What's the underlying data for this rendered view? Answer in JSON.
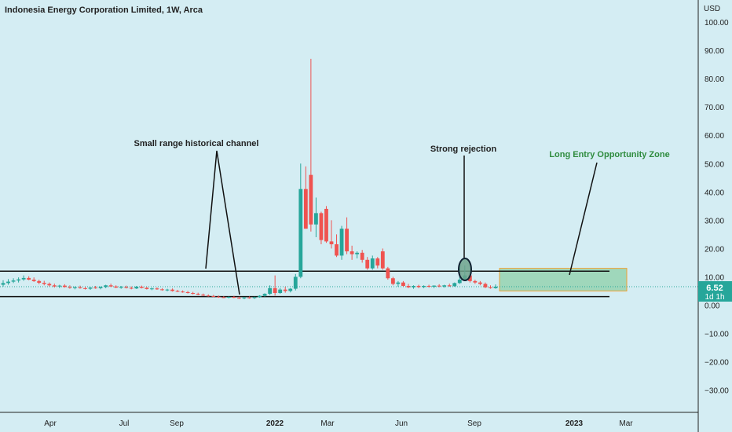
{
  "header": {
    "title": "Indonesia Energy Corporation Limited, 1W, Arca"
  },
  "axis": {
    "currency": "USD",
    "y_ticks": [
      "100.00",
      "90.00",
      "80.00",
      "70.00",
      "60.00",
      "50.00",
      "40.00",
      "30.00",
      "20.00",
      "10.00",
      "0.00",
      "−10.00",
      "−20.00",
      "−30.00"
    ],
    "y_tick_values": [
      100,
      90,
      80,
      70,
      60,
      50,
      40,
      30,
      20,
      10,
      0,
      -10,
      -20,
      -30
    ],
    "x_ticks": [
      "Apr",
      "Jul",
      "Sep",
      "2022",
      "Mar",
      "Jun",
      "Sep",
      "2023",
      "Mar"
    ]
  },
  "price_label": {
    "value": "6.52",
    "countdown": "1d 1h"
  },
  "annotations": {
    "channel": "Small range historical channel",
    "rejection": "Strong rejection",
    "zone": "Long Entry Opportunity Zone"
  },
  "colors": {
    "background": "#d4edf3",
    "up": "#26a69a",
    "down": "#ef5350",
    "zone_fill": "#8ecfa8",
    "zone_border": "#f0a030",
    "zone_text": "#2e8b3d",
    "price_label_bg": "#26a69a"
  },
  "chart_data": {
    "type": "candlestick",
    "title": "Indonesia Energy Corporation Limited, 1W, Arca",
    "ylabel": "USD",
    "ylim": [
      -37,
      105
    ],
    "channel_lines": [
      12,
      3
    ],
    "zone": {
      "low": 5,
      "high": 13
    },
    "last_price": 6.52,
    "candles": [
      {
        "o": 7.2,
        "h": 8.8,
        "l": 6.5,
        "c": 7.8
      },
      {
        "o": 7.8,
        "h": 9.2,
        "l": 7.2,
        "c": 8.3
      },
      {
        "o": 8.3,
        "h": 9.5,
        "l": 7.8,
        "c": 8.7
      },
      {
        "o": 8.7,
        "h": 9.8,
        "l": 8.0,
        "c": 9.1
      },
      {
        "o": 9.1,
        "h": 10.5,
        "l": 8.6,
        "c": 9.6
      },
      {
        "o": 9.6,
        "h": 10.2,
        "l": 8.8,
        "c": 9.0
      },
      {
        "o": 9.0,
        "h": 9.8,
        "l": 8.2,
        "c": 8.5
      },
      {
        "o": 8.5,
        "h": 9.0,
        "l": 7.4,
        "c": 7.9
      },
      {
        "o": 7.9,
        "h": 8.6,
        "l": 7.0,
        "c": 7.5
      },
      {
        "o": 7.5,
        "h": 8.0,
        "l": 6.6,
        "c": 7.0
      },
      {
        "o": 7.0,
        "h": 7.6,
        "l": 6.2,
        "c": 6.6
      },
      {
        "o": 6.6,
        "h": 7.2,
        "l": 6.0,
        "c": 6.9
      },
      {
        "o": 6.9,
        "h": 7.4,
        "l": 6.2,
        "c": 6.4
      },
      {
        "o": 6.4,
        "h": 7.0,
        "l": 5.8,
        "c": 6.1
      },
      {
        "o": 6.1,
        "h": 6.6,
        "l": 5.6,
        "c": 6.3
      },
      {
        "o": 6.3,
        "h": 6.9,
        "l": 5.8,
        "c": 6.0
      },
      {
        "o": 6.0,
        "h": 6.5,
        "l": 5.5,
        "c": 5.8
      },
      {
        "o": 5.8,
        "h": 6.4,
        "l": 5.4,
        "c": 6.2
      },
      {
        "o": 6.2,
        "h": 6.8,
        "l": 5.8,
        "c": 6.0
      },
      {
        "o": 6.0,
        "h": 6.6,
        "l": 5.6,
        "c": 6.4
      },
      {
        "o": 6.4,
        "h": 7.2,
        "l": 6.0,
        "c": 7.0
      },
      {
        "o": 7.0,
        "h": 7.6,
        "l": 6.4,
        "c": 6.6
      },
      {
        "o": 6.6,
        "h": 7.0,
        "l": 6.0,
        "c": 6.2
      },
      {
        "o": 6.2,
        "h": 6.8,
        "l": 5.8,
        "c": 6.4
      },
      {
        "o": 6.4,
        "h": 6.9,
        "l": 5.9,
        "c": 6.1
      },
      {
        "o": 6.1,
        "h": 6.6,
        "l": 5.6,
        "c": 5.9
      },
      {
        "o": 5.9,
        "h": 6.8,
        "l": 5.7,
        "c": 6.5
      },
      {
        "o": 6.5,
        "h": 6.9,
        "l": 5.9,
        "c": 6.1
      },
      {
        "o": 6.1,
        "h": 6.5,
        "l": 5.5,
        "c": 5.7
      },
      {
        "o": 5.7,
        "h": 6.2,
        "l": 5.3,
        "c": 5.9
      },
      {
        "o": 5.9,
        "h": 6.3,
        "l": 5.4,
        "c": 5.6
      },
      {
        "o": 5.6,
        "h": 6.0,
        "l": 5.1,
        "c": 5.3
      },
      {
        "o": 5.3,
        "h": 5.8,
        "l": 4.9,
        "c": 5.5
      },
      {
        "o": 5.5,
        "h": 5.9,
        "l": 4.8,
        "c": 5.0
      },
      {
        "o": 5.0,
        "h": 5.4,
        "l": 4.6,
        "c": 4.8
      },
      {
        "o": 4.8,
        "h": 5.2,
        "l": 4.4,
        "c": 4.6
      },
      {
        "o": 4.6,
        "h": 5.0,
        "l": 4.1,
        "c": 4.3
      },
      {
        "o": 4.3,
        "h": 4.7,
        "l": 3.8,
        "c": 4.0
      },
      {
        "o": 4.0,
        "h": 4.4,
        "l": 3.5,
        "c": 3.7
      },
      {
        "o": 3.7,
        "h": 4.1,
        "l": 3.2,
        "c": 3.4
      },
      {
        "o": 3.4,
        "h": 3.8,
        "l": 3.0,
        "c": 3.2
      },
      {
        "o": 3.2,
        "h": 3.6,
        "l": 2.8,
        "c": 3.0
      },
      {
        "o": 3.0,
        "h": 3.4,
        "l": 2.6,
        "c": 2.8
      },
      {
        "o": 2.8,
        "h": 3.2,
        "l": 2.5,
        "c": 2.7
      },
      {
        "o": 2.7,
        "h": 3.1,
        "l": 2.4,
        "c": 2.9
      },
      {
        "o": 2.9,
        "h": 3.3,
        "l": 2.5,
        "c": 2.6
      },
      {
        "o": 2.6,
        "h": 3.0,
        "l": 2.2,
        "c": 2.4
      },
      {
        "o": 2.4,
        "h": 2.9,
        "l": 2.1,
        "c": 2.7
      },
      {
        "o": 2.7,
        "h": 3.1,
        "l": 2.3,
        "c": 2.5
      },
      {
        "o": 2.5,
        "h": 3.0,
        "l": 2.2,
        "c": 2.8
      },
      {
        "o": 2.8,
        "h": 3.5,
        "l": 2.6,
        "c": 3.3
      },
      {
        "o": 3.3,
        "h": 4.2,
        "l": 3.0,
        "c": 4.0
      },
      {
        "o": 4.0,
        "h": 7.0,
        "l": 3.6,
        "c": 6.0
      },
      {
        "o": 6.0,
        "h": 10.5,
        "l": 3.4,
        "c": 4.3
      },
      {
        "o": 4.3,
        "h": 6.0,
        "l": 4.0,
        "c": 5.5
      },
      {
        "o": 5.5,
        "h": 6.5,
        "l": 4.4,
        "c": 5.0
      },
      {
        "o": 5.0,
        "h": 6.0,
        "l": 4.5,
        "c": 5.8
      },
      {
        "o": 5.8,
        "h": 11.0,
        "l": 5.2,
        "c": 10.0
      },
      {
        "o": 10.0,
        "h": 50.0,
        "l": 9.5,
        "c": 41.0
      },
      {
        "o": 41.0,
        "h": 49.0,
        "l": 27.0,
        "c": 27.0
      },
      {
        "o": 46.0,
        "h": 87.0,
        "l": 26.0,
        "c": 28.5
      },
      {
        "o": 28.5,
        "h": 38.0,
        "l": 24.0,
        "c": 32.5
      },
      {
        "o": 32.5,
        "h": 33.0,
        "l": 21.5,
        "c": 23.0
      },
      {
        "o": 34.0,
        "h": 35.0,
        "l": 22.0,
        "c": 22.5
      },
      {
        "o": 22.5,
        "h": 30.0,
        "l": 20.0,
        "c": 21.5
      },
      {
        "o": 21.5,
        "h": 25.0,
        "l": 17.0,
        "c": 17.5
      },
      {
        "o": 17.5,
        "h": 28.0,
        "l": 16.0,
        "c": 27.0
      },
      {
        "o": 27.0,
        "h": 31.0,
        "l": 18.0,
        "c": 19.0
      },
      {
        "o": 19.0,
        "h": 21.0,
        "l": 16.0,
        "c": 18.0
      },
      {
        "o": 18.0,
        "h": 19.0,
        "l": 16.5,
        "c": 18.5
      },
      {
        "o": 18.5,
        "h": 19.5,
        "l": 15.0,
        "c": 16.0
      },
      {
        "o": 16.0,
        "h": 17.0,
        "l": 12.5,
        "c": 13.0
      },
      {
        "o": 13.0,
        "h": 17.5,
        "l": 12.5,
        "c": 16.5
      },
      {
        "o": 16.5,
        "h": 17.0,
        "l": 13.0,
        "c": 14.0
      },
      {
        "o": 19.0,
        "h": 20.0,
        "l": 12.5,
        "c": 13.0
      },
      {
        "o": 13.0,
        "h": 13.5,
        "l": 9.0,
        "c": 9.5
      },
      {
        "o": 9.5,
        "h": 10.0,
        "l": 7.0,
        "c": 7.5
      },
      {
        "o": 7.5,
        "h": 8.5,
        "l": 6.5,
        "c": 8.0
      },
      {
        "o": 8.0,
        "h": 8.5,
        "l": 6.5,
        "c": 6.8
      },
      {
        "o": 6.8,
        "h": 7.5,
        "l": 6.0,
        "c": 6.3
      },
      {
        "o": 6.3,
        "h": 7.0,
        "l": 5.8,
        "c": 6.8
      },
      {
        "o": 6.8,
        "h": 7.2,
        "l": 6.0,
        "c": 6.4
      },
      {
        "o": 6.4,
        "h": 7.0,
        "l": 6.0,
        "c": 6.8
      },
      {
        "o": 6.8,
        "h": 7.2,
        "l": 6.2,
        "c": 6.5
      },
      {
        "o": 6.5,
        "h": 7.0,
        "l": 6.0,
        "c": 6.9
      },
      {
        "o": 6.9,
        "h": 7.4,
        "l": 6.3,
        "c": 6.6
      },
      {
        "o": 6.6,
        "h": 7.2,
        "l": 6.2,
        "c": 7.0
      },
      {
        "o": 7.0,
        "h": 7.6,
        "l": 6.5,
        "c": 6.7
      },
      {
        "o": 6.7,
        "h": 8.0,
        "l": 6.5,
        "c": 7.8
      },
      {
        "o": 7.8,
        "h": 14.5,
        "l": 7.5,
        "c": 9.0
      },
      {
        "o": 9.0,
        "h": 14.0,
        "l": 8.5,
        "c": 10.5
      },
      {
        "o": 10.5,
        "h": 11.0,
        "l": 8.0,
        "c": 8.5
      },
      {
        "o": 8.5,
        "h": 9.0,
        "l": 7.5,
        "c": 8.0
      },
      {
        "o": 8.0,
        "h": 8.5,
        "l": 7.0,
        "c": 7.5
      },
      {
        "o": 7.5,
        "h": 8.0,
        "l": 6.0,
        "c": 6.3
      },
      {
        "o": 6.3,
        "h": 7.0,
        "l": 5.8,
        "c": 6.0
      },
      {
        "o": 6.0,
        "h": 7.3,
        "l": 5.8,
        "c": 6.52
      }
    ],
    "x_tick_labels": [
      "Apr",
      "Jul",
      "Sep",
      "2022",
      "Mar",
      "Jun",
      "Sep",
      "2023",
      "Mar"
    ]
  }
}
